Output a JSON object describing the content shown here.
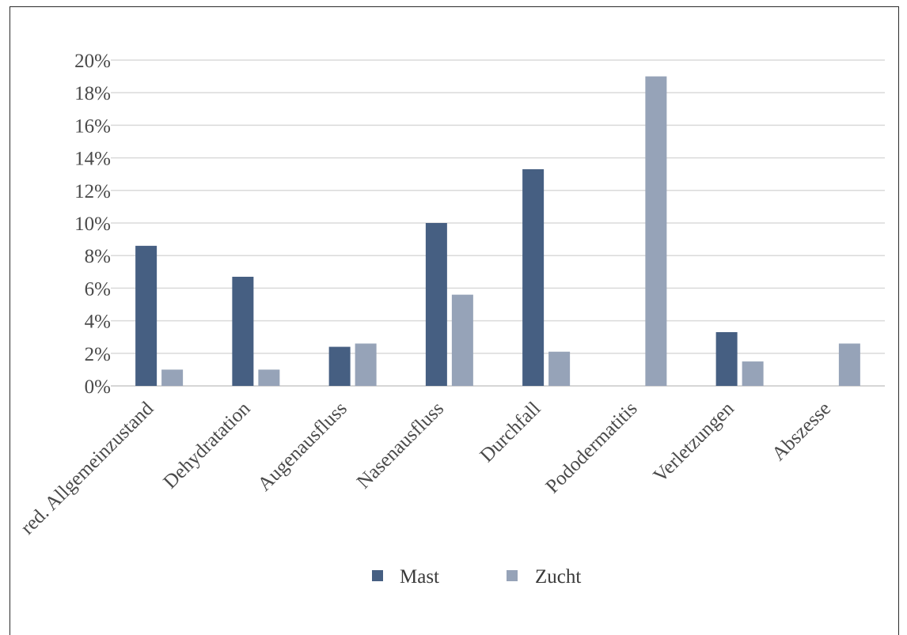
{
  "chart_data": {
    "type": "bar",
    "categories": [
      "red. Allgemeinzustand",
      "Dehydratation",
      "Augenausfluss",
      "Nasenausfluss",
      "Durchfall",
      "Pododermatitis",
      "Verletzungen",
      "Abszesse"
    ],
    "series": [
      {
        "name": "Mast",
        "values": [
          8.6,
          6.7,
          2.4,
          10.0,
          13.3,
          0,
          3.3,
          0
        ],
        "color": "#465f82"
      },
      {
        "name": "Zucht",
        "values": [
          1.0,
          1.0,
          2.6,
          5.6,
          2.1,
          19.0,
          1.5,
          2.6
        ],
        "color": "#96a3b8"
      }
    ],
    "y_ticks": [
      "0%",
      "2%",
      "4%",
      "6%",
      "8%",
      "10%",
      "12%",
      "14%",
      "16%",
      "18%",
      "20%"
    ],
    "ylim": [
      0,
      20
    ],
    "grid": true,
    "legend_position": "bottom"
  }
}
